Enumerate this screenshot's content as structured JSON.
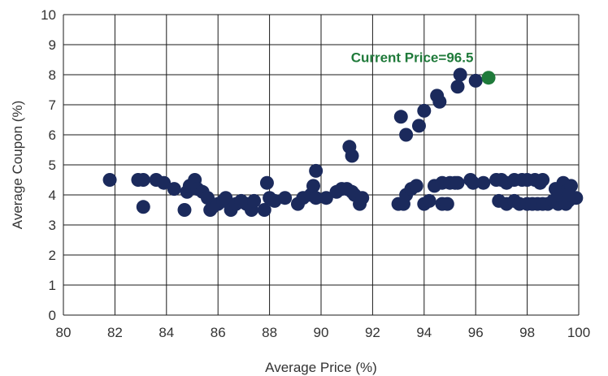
{
  "colors": {
    "series": "#1b2a5c",
    "highlight": "#1f7a3a",
    "grid": "#1a1a1a",
    "text": "#333333"
  },
  "chart_data": {
    "type": "scatter",
    "xlabel": "Average Price (%)",
    "ylabel": "Average Coupon (%)",
    "xlim": [
      80,
      100
    ],
    "ylim": [
      0,
      10
    ],
    "x_ticks": [
      "80",
      "82",
      "84",
      "86",
      "88",
      "90",
      "92",
      "94",
      "96",
      "98",
      "100"
    ],
    "y_ticks": [
      "0",
      "1",
      "2",
      "3",
      "4",
      "5",
      "6",
      "7",
      "8",
      "9",
      "10"
    ],
    "grid": true,
    "series": [
      {
        "points": [
          [
            81.8,
            4.5
          ],
          [
            82.9,
            4.5
          ],
          [
            83.1,
            4.5
          ],
          [
            83.1,
            3.6
          ],
          [
            83.6,
            4.5
          ],
          [
            83.9,
            4.4
          ],
          [
            84.3,
            4.2
          ],
          [
            84.7,
            3.5
          ],
          [
            84.8,
            4.1
          ],
          [
            84.9,
            4.3
          ],
          [
            85.1,
            4.5
          ],
          [
            85.2,
            4.2
          ],
          [
            85.4,
            4.1
          ],
          [
            85.6,
            3.9
          ],
          [
            85.7,
            3.5
          ],
          [
            85.8,
            3.6
          ],
          [
            86.0,
            3.7
          ],
          [
            86.2,
            3.8
          ],
          [
            86.3,
            3.9
          ],
          [
            86.5,
            3.5
          ],
          [
            86.7,
            3.7
          ],
          [
            86.9,
            3.8
          ],
          [
            87.1,
            3.7
          ],
          [
            87.3,
            3.5
          ],
          [
            87.4,
            3.8
          ],
          [
            87.8,
            3.5
          ],
          [
            87.9,
            4.4
          ],
          [
            88.0,
            3.9
          ],
          [
            88.2,
            3.8
          ],
          [
            88.6,
            3.9
          ],
          [
            89.1,
            3.7
          ],
          [
            89.3,
            3.9
          ],
          [
            89.6,
            4.0
          ],
          [
            89.7,
            4.3
          ],
          [
            89.8,
            4.8
          ],
          [
            89.8,
            3.9
          ],
          [
            90.2,
            3.9
          ],
          [
            90.6,
            4.1
          ],
          [
            90.8,
            4.2
          ],
          [
            91.0,
            4.2
          ],
          [
            91.1,
            5.6
          ],
          [
            91.2,
            5.3
          ],
          [
            91.2,
            4.1
          ],
          [
            91.3,
            4.0
          ],
          [
            91.5,
            3.7
          ],
          [
            91.6,
            3.9
          ],
          [
            93.0,
            3.7
          ],
          [
            93.1,
            6.6
          ],
          [
            93.2,
            3.7
          ],
          [
            93.3,
            6.0
          ],
          [
            93.3,
            4.0
          ],
          [
            93.5,
            4.2
          ],
          [
            93.7,
            4.3
          ],
          [
            93.8,
            6.3
          ],
          [
            94.0,
            6.8
          ],
          [
            94.0,
            3.7
          ],
          [
            94.2,
            3.8
          ],
          [
            94.4,
            4.3
          ],
          [
            94.5,
            7.3
          ],
          [
            94.6,
            7.1
          ],
          [
            94.7,
            4.4
          ],
          [
            94.7,
            3.7
          ],
          [
            94.9,
            3.7
          ],
          [
            95.0,
            4.4
          ],
          [
            95.2,
            4.4
          ],
          [
            95.3,
            4.4
          ],
          [
            95.3,
            7.6
          ],
          [
            95.4,
            8.0
          ],
          [
            95.8,
            4.5
          ],
          [
            95.9,
            4.4
          ],
          [
            96.0,
            7.8
          ],
          [
            96.3,
            4.4
          ],
          [
            96.8,
            4.5
          ],
          [
            96.9,
            3.8
          ],
          [
            97.0,
            4.5
          ],
          [
            97.2,
            4.4
          ],
          [
            97.2,
            3.7
          ],
          [
            97.5,
            4.5
          ],
          [
            97.5,
            3.8
          ],
          [
            97.7,
            3.7
          ],
          [
            97.8,
            4.5
          ],
          [
            98.0,
            4.5
          ],
          [
            98.0,
            3.7
          ],
          [
            98.2,
            3.7
          ],
          [
            98.3,
            4.5
          ],
          [
            98.4,
            3.7
          ],
          [
            98.5,
            4.4
          ],
          [
            98.6,
            4.5
          ],
          [
            98.6,
            3.7
          ],
          [
            98.8,
            3.7
          ],
          [
            99.0,
            3.8
          ],
          [
            99.1,
            4.2
          ],
          [
            99.2,
            3.7
          ],
          [
            99.3,
            4.0
          ],
          [
            99.4,
            3.8
          ],
          [
            99.4,
            4.4
          ],
          [
            99.5,
            3.7
          ],
          [
            99.5,
            4.1
          ],
          [
            99.6,
            3.8
          ],
          [
            99.7,
            4.3
          ],
          [
            99.8,
            3.9
          ],
          [
            99.9,
            3.9
          ],
          [
            99.2,
            4.0
          ],
          [
            99.6,
            4.0
          ]
        ]
      }
    ],
    "highlight": {
      "label": "Current Price=96.5",
      "x": 96.5,
      "y": 7.9
    }
  }
}
